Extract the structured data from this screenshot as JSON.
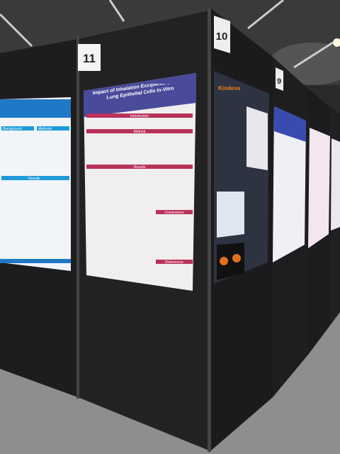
{
  "boards": [
    {
      "number": "11"
    },
    {
      "number": "10"
    },
    {
      "number": "9"
    }
  ],
  "posters": [
    {
      "title": "Impact of Inhalation Excipients on Distal Lung Epithelial Cells In-Vitro",
      "sections": [
        "Introduction",
        "Method",
        "Results",
        "Conclusions",
        "References"
      ]
    },
    {
      "sections": [
        "Background",
        "Methods",
        "Results"
      ]
    },
    {
      "logo": "Kindeva"
    }
  ]
}
